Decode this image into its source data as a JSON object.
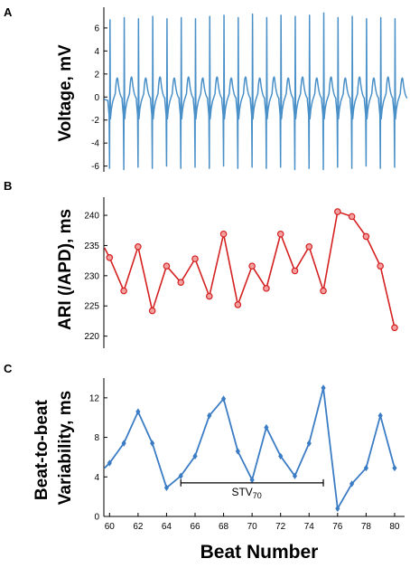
{
  "chart_data": [
    {
      "panel": "A",
      "type": "line",
      "ylabel": "Voltage, mV",
      "ylim": [
        -6.5,
        7.8
      ],
      "yticks": [
        -6,
        -4,
        -2,
        0,
        2,
        4,
        6
      ],
      "color": "#4a90c8",
      "xlim": [
        59.6,
        80.7
      ],
      "spikes": [
        {
          "x": 60.0,
          "min": -6.2,
          "max": 6.7,
          "hump": 1.7
        },
        {
          "x": 61.0,
          "min": -6.3,
          "max": 6.9,
          "hump": 1.8
        },
        {
          "x": 62.0,
          "min": -6.1,
          "max": 6.8,
          "hump": 1.7
        },
        {
          "x": 63.0,
          "min": -6.2,
          "max": 7.0,
          "hump": 1.8
        },
        {
          "x": 64.0,
          "min": -6.0,
          "max": 6.8,
          "hump": 1.7
        },
        {
          "x": 65.0,
          "min": -6.2,
          "max": 6.9,
          "hump": 1.8
        },
        {
          "x": 66.0,
          "min": -6.1,
          "max": 6.8,
          "hump": 1.7
        },
        {
          "x": 67.0,
          "min": -6.2,
          "max": 7.0,
          "hump": 1.8
        },
        {
          "x": 68.0,
          "min": -6.0,
          "max": 7.1,
          "hump": 1.7
        },
        {
          "x": 69.0,
          "min": -6.2,
          "max": 6.9,
          "hump": 1.8
        },
        {
          "x": 70.0,
          "min": -6.1,
          "max": 7.2,
          "hump": 1.7
        },
        {
          "x": 71.0,
          "min": -6.2,
          "max": 6.9,
          "hump": 1.8
        },
        {
          "x": 72.0,
          "min": -6.1,
          "max": 7.1,
          "hump": 1.7
        },
        {
          "x": 73.0,
          "min": -6.3,
          "max": 7.0,
          "hump": 1.8
        },
        {
          "x": 74.0,
          "min": -6.2,
          "max": 7.1,
          "hump": 1.7
        },
        {
          "x": 75.0,
          "min": -6.3,
          "max": 7.3,
          "hump": 1.8
        },
        {
          "x": 76.0,
          "min": -6.1,
          "max": 6.9,
          "hump": 1.7
        },
        {
          "x": 77.0,
          "min": -6.2,
          "max": 7.0,
          "hump": 1.8
        },
        {
          "x": 78.0,
          "min": -6.0,
          "max": 6.8,
          "hump": 1.7
        },
        {
          "x": 79.0,
          "min": -6.2,
          "max": 6.9,
          "hump": 1.8
        },
        {
          "x": 80.0,
          "min": -6.1,
          "max": 6.8,
          "hump": 1.7
        }
      ]
    },
    {
      "panel": "B",
      "type": "line",
      "ylabel": "ARI (/APD), ms",
      "ylim": [
        218,
        243
      ],
      "yticks": [
        220,
        225,
        230,
        235,
        240
      ],
      "color": "#d42020",
      "marker": "circle",
      "x": [
        60,
        61,
        62,
        63,
        64,
        65,
        66,
        67,
        68,
        69,
        70,
        71,
        72,
        73,
        74,
        75,
        76,
        77,
        78,
        79,
        80
      ],
      "values": [
        233.0,
        227.5,
        234.8,
        224.2,
        231.6,
        228.9,
        232.8,
        226.6,
        236.9,
        225.2,
        231.6,
        227.9,
        236.9,
        230.8,
        234.8,
        227.5,
        240.6,
        239.8,
        236.5,
        231.6,
        221.4
      ],
      "lead_in": 234.6
    },
    {
      "panel": "C",
      "type": "line",
      "ylabel": "Beat-to-beat Variability, ms",
      "xlabel": "Beat Number",
      "ylim": [
        0,
        14
      ],
      "yticks": [
        0,
        4,
        8,
        12
      ],
      "xticks": [
        60,
        62,
        64,
        66,
        68,
        70,
        72,
        74,
        76,
        78,
        80
      ],
      "color": "#3b7cc4",
      "marker": "diamond",
      "x": [
        60,
        61,
        62,
        63,
        64,
        65,
        66,
        67,
        68,
        69,
        70,
        71,
        72,
        73,
        74,
        75,
        76,
        77,
        78,
        79,
        80
      ],
      "values": [
        5.4,
        7.4,
        10.6,
        7.4,
        2.9,
        4.1,
        6.1,
        10.2,
        11.9,
        6.6,
        3.7,
        9.0,
        6.1,
        4.1,
        7.4,
        13.0,
        0.8,
        3.3,
        4.9,
        10.2,
        4.9
      ],
      "lead_in": 4.9,
      "annotation": {
        "label": "STV",
        "subscript": "70",
        "x_start": 65,
        "x_end": 75,
        "y": 3.4
      }
    }
  ]
}
